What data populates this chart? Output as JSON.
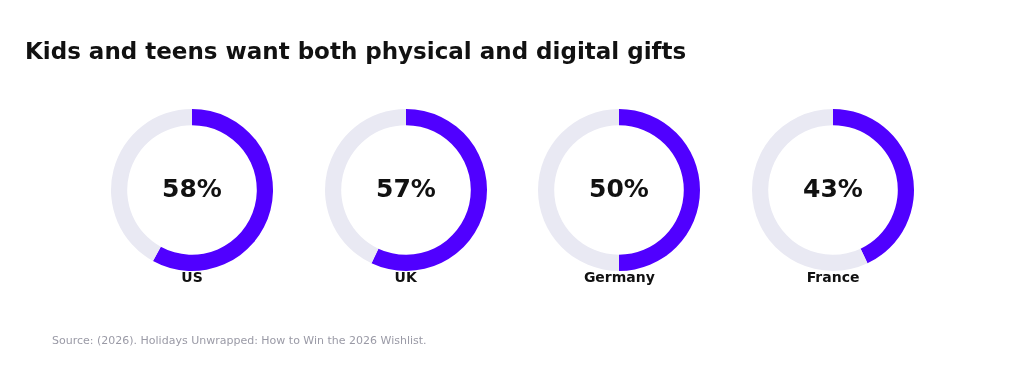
{
  "chart_data": [
    {
      "type": "donut",
      "title": "Kids and teens want both physical and digital gifts",
      "categories": [
        null,
        null
      ],
      "values": [
        58,
        42
      ],
      "colors": [
        "#5000ff",
        "#e9e9f3"
      ],
      "value_labels": [
        "58%",
        null
      ],
      "xlabel": "US",
      "annotations": [
        "Source: (2026).  Holidays Unwrapped: How to Win the 2026 Wishlist."
      ]
    },
    {
      "type": "donut",
      "categories": [
        null,
        null
      ],
      "values": [
        57,
        43
      ],
      "colors": [
        "#5000ff",
        "#e9e9f3"
      ],
      "value_labels": [
        "57%",
        null
      ],
      "xlabel": "UK"
    },
    {
      "type": "donut",
      "categories": [
        null,
        null
      ],
      "values": [
        50,
        50
      ],
      "colors": [
        "#5000ff",
        "#e9e9f3"
      ],
      "value_labels": [
        "50%",
        null
      ],
      "xlabel": "Germany"
    },
    {
      "type": "donut",
      "categories": [
        null,
        null
      ],
      "values": [
        43,
        57
      ],
      "colors": [
        "#5000ff",
        "#e9e9f3"
      ],
      "value_labels": [
        "43%",
        null
      ],
      "xlabel": "France"
    }
  ]
}
